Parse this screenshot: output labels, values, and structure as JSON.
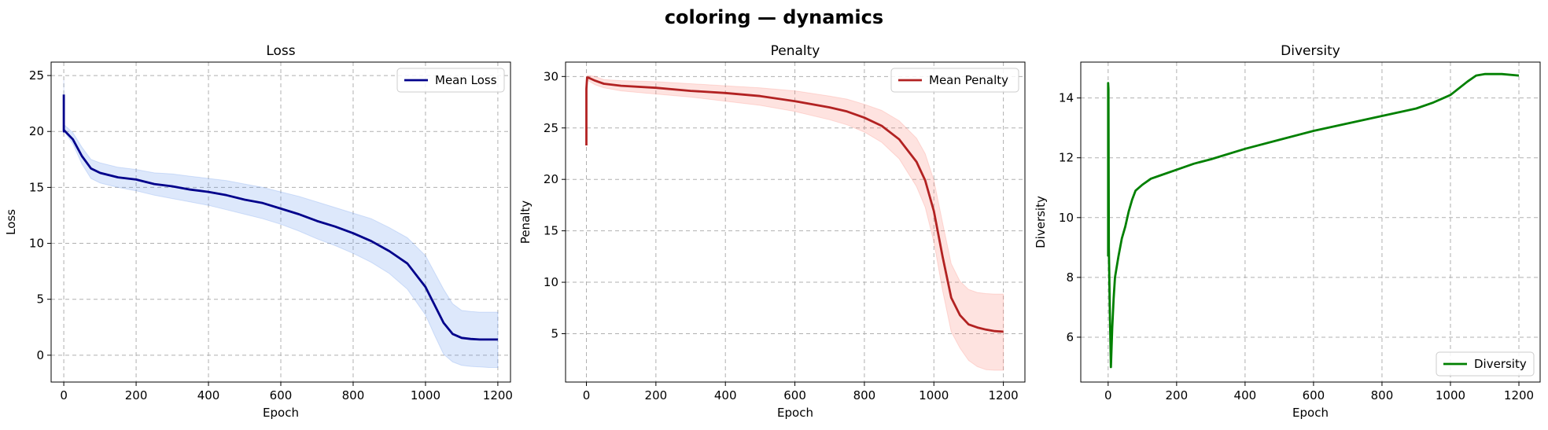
{
  "suptitle": "coloring — dynamics",
  "colors": {
    "loss_line": "#00008b",
    "loss_band": "#6495ed",
    "penalty_line": "#b22222",
    "penalty_band": "#fa8072",
    "diversity_line": "#008000"
  },
  "chart_data": [
    {
      "type": "line",
      "title": "Loss",
      "xlabel": "Epoch",
      "ylabel": "Loss",
      "xlim": [
        -35,
        1235
      ],
      "ylim": [
        -2.4,
        26.2
      ],
      "xticks": [
        0,
        200,
        400,
        600,
        800,
        1000,
        1200
      ],
      "yticks": [
        0,
        5,
        10,
        15,
        20,
        25
      ],
      "grid": true,
      "legend": "top-right",
      "series": [
        {
          "name": "Mean Loss",
          "x": [
            0,
            0,
            1,
            25,
            50,
            75,
            100,
            150,
            200,
            250,
            300,
            350,
            400,
            450,
            500,
            550,
            600,
            650,
            700,
            750,
            800,
            850,
            900,
            950,
            1000,
            1025,
            1050,
            1075,
            1100,
            1125,
            1150,
            1175,
            1200
          ],
          "values": [
            23.3,
            20.0,
            20.1,
            19.3,
            17.8,
            16.7,
            16.3,
            15.9,
            15.7,
            15.3,
            15.1,
            14.8,
            14.6,
            14.3,
            13.9,
            13.6,
            13.1,
            12.6,
            12.0,
            11.5,
            10.9,
            10.2,
            9.3,
            8.2,
            6.1,
            4.5,
            2.9,
            1.9,
            1.55,
            1.45,
            1.4,
            1.4,
            1.4
          ],
          "band_lower": [
            20.0,
            20.0,
            20.0,
            18.9,
            17.1,
            15.8,
            15.4,
            15.0,
            14.7,
            14.3,
            14.0,
            13.7,
            13.4,
            13.0,
            12.6,
            12.2,
            11.7,
            11.1,
            10.4,
            9.8,
            9.1,
            8.3,
            7.3,
            5.9,
            3.6,
            1.8,
            0.1,
            -0.6,
            -0.9,
            -1.0,
            -1.05,
            -1.1,
            -1.1
          ],
          "band_upper": [
            24.6,
            21.0,
            20.6,
            19.9,
            18.6,
            17.5,
            17.2,
            16.8,
            16.6,
            16.3,
            16.2,
            16.0,
            15.8,
            15.6,
            15.3,
            15.0,
            14.6,
            14.2,
            13.7,
            13.2,
            12.7,
            12.2,
            11.4,
            10.5,
            8.9,
            7.4,
            5.9,
            4.6,
            4.0,
            3.9,
            3.85,
            3.85,
            3.85
          ]
        }
      ]
    },
    {
      "type": "line",
      "title": "Penalty",
      "xlabel": "Epoch",
      "ylabel": "Penalty",
      "xlim": [
        -60,
        1262
      ],
      "ylim": [
        0.3,
        31.4
      ],
      "xticks": [
        0,
        200,
        400,
        600,
        800,
        1000,
        1200
      ],
      "yticks": [
        5,
        10,
        15,
        20,
        25,
        30
      ],
      "grid": true,
      "legend": "top-right",
      "series": [
        {
          "name": "Mean Penalty",
          "x": [
            0,
            0,
            2,
            5,
            25,
            50,
            100,
            200,
            300,
            400,
            500,
            600,
            700,
            750,
            800,
            850,
            900,
            950,
            975,
            1000,
            1025,
            1050,
            1075,
            1100,
            1125,
            1150,
            1175,
            1200
          ],
          "values": [
            23.3,
            28.8,
            29.9,
            29.9,
            29.6,
            29.3,
            29.1,
            28.9,
            28.6,
            28.4,
            28.1,
            27.6,
            27.0,
            26.6,
            26.0,
            25.2,
            23.9,
            21.7,
            19.9,
            16.9,
            12.5,
            8.5,
            6.8,
            5.9,
            5.6,
            5.4,
            5.25,
            5.2
          ],
          "band_lower": [
            23.3,
            28.5,
            29.6,
            29.6,
            29.2,
            28.9,
            28.6,
            28.3,
            28.0,
            27.6,
            27.2,
            26.6,
            25.8,
            25.3,
            24.6,
            23.6,
            22.0,
            19.3,
            17.3,
            13.9,
            9.2,
            5.2,
            3.6,
            2.4,
            1.8,
            1.5,
            1.45,
            1.45
          ],
          "band_upper": [
            23.3,
            29.1,
            30.1,
            30.1,
            30.0,
            29.7,
            29.6,
            29.5,
            29.3,
            29.1,
            28.9,
            28.6,
            28.1,
            27.8,
            27.3,
            26.7,
            25.7,
            24.0,
            22.5,
            19.9,
            15.8,
            11.8,
            10.1,
            9.3,
            9.0,
            8.9,
            8.85,
            8.85
          ]
        }
      ]
    },
    {
      "type": "line",
      "title": "Diversity",
      "xlabel": "Epoch",
      "ylabel": "Diversity",
      "xlim": [
        -80,
        1262
      ],
      "ylim": [
        4.5,
        15.2
      ],
      "xticks": [
        0,
        200,
        400,
        600,
        800,
        1000,
        1200
      ],
      "yticks": [
        6,
        8,
        10,
        12,
        14
      ],
      "grid": true,
      "legend": "bottom-right",
      "series": [
        {
          "name": "Diversity",
          "x": [
            0,
            0,
            1,
            2,
            5,
            8,
            12,
            16,
            20,
            30,
            40,
            50,
            60,
            70,
            80,
            100,
            125,
            150,
            200,
            250,
            300,
            400,
            500,
            600,
            700,
            800,
            900,
            950,
            1000,
            1050,
            1075,
            1100,
            1150,
            1200
          ],
          "values": [
            8.7,
            14.5,
            14.3,
            9.0,
            6.8,
            5.0,
            6.3,
            7.3,
            8.0,
            8.7,
            9.3,
            9.7,
            10.2,
            10.6,
            10.9,
            11.1,
            11.3,
            11.4,
            11.6,
            11.8,
            11.95,
            12.3,
            12.6,
            12.9,
            13.15,
            13.4,
            13.65,
            13.85,
            14.1,
            14.55,
            14.75,
            14.8,
            14.8,
            14.75
          ]
        }
      ]
    }
  ]
}
